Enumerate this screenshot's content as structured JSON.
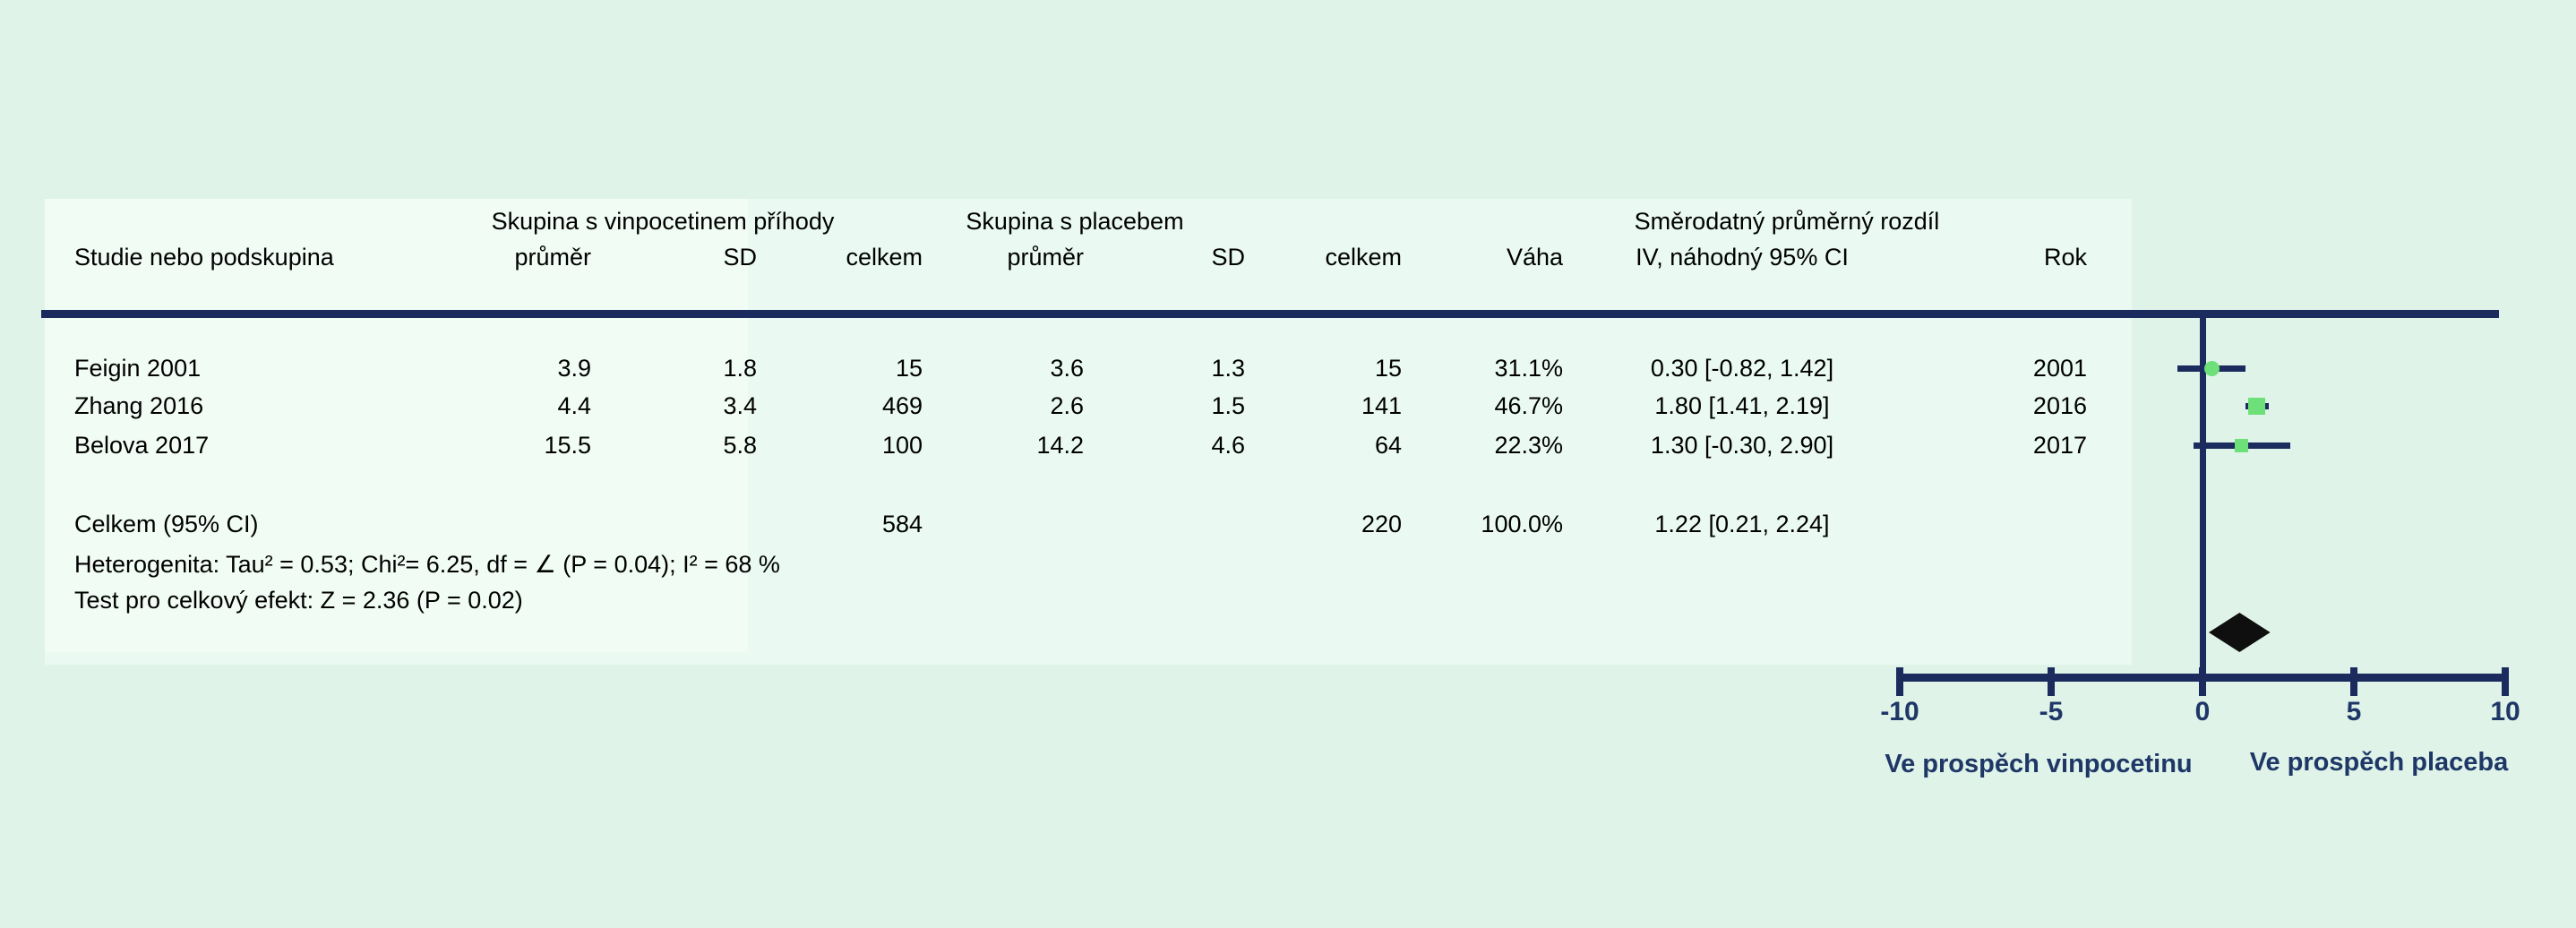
{
  "table": {
    "group_headers": {
      "vinpocetine": "Skupina s vinpocetinem příhody",
      "placebo": "Skupina s placebem",
      "effect": "Směrodatný průměrný rozdíl"
    },
    "col_headers": {
      "study": "Studie nebo podskupina",
      "mean1": "průměr",
      "sd1": "SD",
      "total1": "celkem",
      "mean2": "průměr",
      "sd2": "SD",
      "total2": "celkem",
      "weight": "Váha",
      "ci": "IV, náhodný 95% CI",
      "year": "Rok"
    },
    "rows": [
      {
        "study": "Feigin 2001",
        "v_mean": "3.9",
        "v_sd": "1.8",
        "v_total": "15",
        "p_mean": "3.6",
        "p_sd": "1.3",
        "p_total": "15",
        "weight": "31.1%",
        "ci": "0.30 [-0.82, 1.42]",
        "year": "2001"
      },
      {
        "study": "Zhang 2016",
        "v_mean": "4.4",
        "v_sd": "3.4",
        "v_total": "469",
        "p_mean": "2.6",
        "p_sd": "1.5",
        "p_total": "141",
        "weight": "46.7%",
        "ci": "1.80 [1.41, 2.19]",
        "year": "2016"
      },
      {
        "study": "Belova 2017",
        "v_mean": "15.5",
        "v_sd": "5.8",
        "v_total": "100",
        "p_mean": "14.2",
        "p_sd": "4.6",
        "p_total": "64",
        "weight": "22.3%",
        "ci": "1.30 [-0.30, 2.90]",
        "year": "2017"
      }
    ],
    "total_row": {
      "label": "Celkem (95% CI)",
      "v_total": "584",
      "p_total": "220",
      "weight": "100.0%",
      "ci": "1.22 [0.21, 2.24]"
    },
    "footnotes": {
      "heterogeneity": "Heterogenita:  Tau² = 0.53; Chi²= 6.25, df = ∠ (P = 0.04); I² = 68 %",
      "overall_effect": "Test pro celkový efekt: Z = 2.36 (P = 0.02)"
    }
  },
  "chart_data": {
    "type": "forest",
    "effect_measure": "Směrodatný průměrný rozdíl, IV, náhodný 95% CI",
    "studies": [
      {
        "name": "Feigin 2001",
        "effect": 0.3,
        "ci_low": -0.82,
        "ci_high": 1.42,
        "weight_pct": 31.1,
        "year": 2001,
        "marker": "circle"
      },
      {
        "name": "Zhang 2016",
        "effect": 1.8,
        "ci_low": 1.41,
        "ci_high": 2.19,
        "weight_pct": 46.7,
        "year": 2016,
        "marker": "square"
      },
      {
        "name": "Belova 2017",
        "effect": 1.3,
        "ci_low": -0.3,
        "ci_high": 2.9,
        "weight_pct": 22.3,
        "year": 2017,
        "marker": "square"
      }
    ],
    "total": {
      "label": "Celkem (95% CI)",
      "effect": 1.22,
      "ci_low": 0.21,
      "ci_high": 2.24,
      "n_vinpocetine": 584,
      "n_placebo": 220,
      "weight_pct": 100.0
    },
    "axis": {
      "min": -10,
      "max": 10,
      "ticks": [
        -10,
        -5,
        0,
        5,
        10
      ],
      "label_left": "Ve prospěch vinpocetinu",
      "label_right": "Ve prospěch placeba"
    },
    "colors": {
      "marker_green": "#6ee07a",
      "line_navy": "#1b2b5e",
      "label_navy": "#1e3766",
      "diamond_black": "#0f0f0f",
      "background_mint": "#dff3e9",
      "panel_mint": "#eafaf2"
    }
  }
}
